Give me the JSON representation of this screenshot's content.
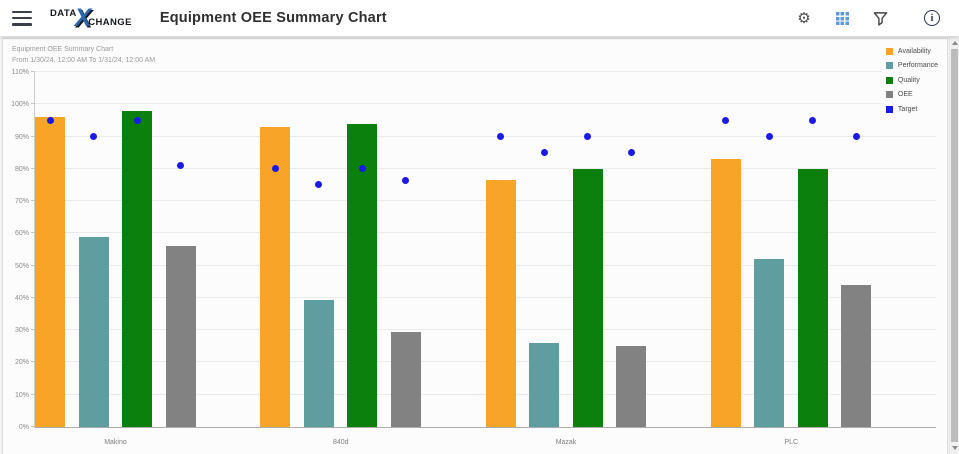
{
  "header": {
    "logo": {
      "data": "DATA",
      "x": "X",
      "change": "CHANGE"
    },
    "title": "Equipment OEE Summary Chart",
    "icons": [
      "menu",
      "settings",
      "grid-view",
      "filter",
      "info"
    ]
  },
  "chart_data": {
    "type": "bar",
    "title": "Equipment OEE Summary Chart",
    "subtitle": "From 1/30/24, 12:00 AM To 1/31/24, 12:00 AM",
    "categories": [
      "Makino",
      "840d",
      "Mazak",
      "PLC"
    ],
    "series": [
      {
        "name": "Availability",
        "color": "#F8A426",
        "values": [
          96,
          93,
          76.5,
          83
        ]
      },
      {
        "name": "Performance",
        "color": "#5F9EA0",
        "values": [
          59,
          39.5,
          26,
          52
        ]
      },
      {
        "name": "Quality",
        "color": "#0B800D",
        "values": [
          98,
          94,
          80,
          80
        ]
      },
      {
        "name": "OEE",
        "color": "#828282",
        "values": [
          56,
          29.5,
          25,
          44
        ]
      }
    ],
    "target_series": {
      "name": "Target",
      "color": "#1A1AE6",
      "values_by_category": [
        [
          95,
          90,
          95,
          81
        ],
        [
          80,
          75,
          80,
          76.5
        ],
        [
          90,
          85,
          90,
          85
        ],
        [
          95,
          90,
          95,
          90
        ]
      ]
    },
    "ylim": [
      0,
      110
    ],
    "ytick_step": 10,
    "yticks": [
      "0%",
      "10%",
      "20%",
      "30%",
      "40%",
      "50%",
      "60%",
      "70%",
      "80%",
      "90%",
      "100%",
      "110%"
    ],
    "grid": true,
    "legend_position": "top-right",
    "legend": [
      {
        "label": "Availability",
        "color": "#F8A426"
      },
      {
        "label": "Performance",
        "color": "#5F9EA0"
      },
      {
        "label": "Quality",
        "color": "#0B800D"
      },
      {
        "label": "OEE",
        "color": "#828282"
      },
      {
        "label": "Target",
        "color": "#1A1AE6"
      }
    ]
  }
}
